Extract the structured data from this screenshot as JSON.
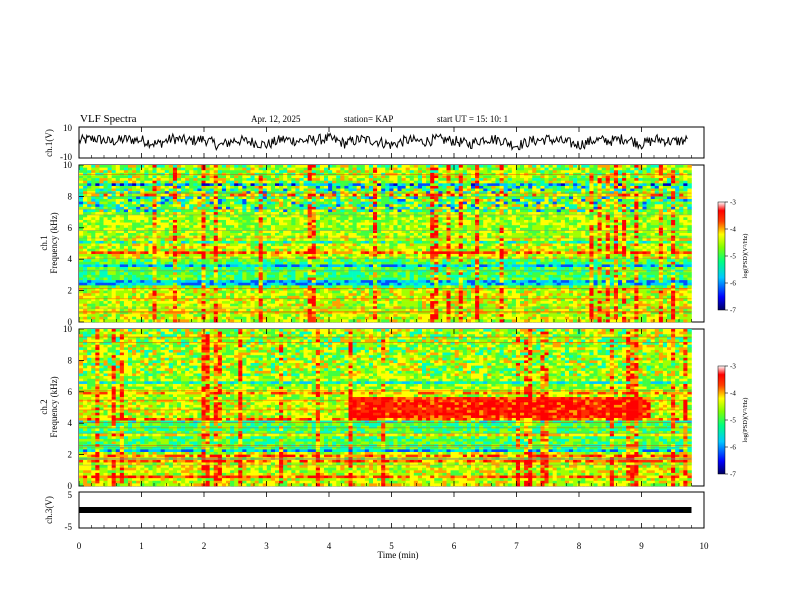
{
  "header": {
    "title": "VLF Spectra",
    "date": "Apr. 12, 2025",
    "station": "station= KAP",
    "start": "start UT =  15: 10: 1"
  },
  "panels": {
    "waveform_top": {
      "ylabel": "ch.1(V)",
      "ymin_label": "-10",
      "ymax_label": "10"
    },
    "spectrogram_1": {
      "ylabel_line1": "ch.1",
      "ylabel_line2": "Frequency (kHz)"
    },
    "spectrogram_2": {
      "ylabel_line1": "ch.2",
      "ylabel_line2": "Frequency (kHz)"
    },
    "waveform_bottom": {
      "ylabel": "ch.3(V)",
      "ymin_label": "-5",
      "ymax_label": "5"
    },
    "xlabel": "Time (min)"
  },
  "colorbar": {
    "label": "log(PSD)(V²/Hz)",
    "ticks": [
      "-3",
      "-4",
      "-5",
      "-6",
      "-7"
    ],
    "colors": [
      "#000080",
      "#0000ff",
      "#00ffff",
      "#00ff00",
      "#ffff00",
      "#ff0000",
      "#ffffff"
    ]
  },
  "chart_data": [
    {
      "type": "line",
      "title": "VLF Spectra",
      "ylabel": "ch.1(V)",
      "xlabel": "Time (min)",
      "xlim": [
        0,
        10
      ],
      "ylim": [
        -10,
        10
      ],
      "x_ticks": [
        "0",
        "1",
        "2",
        "3",
        "4",
        "5",
        "6",
        "7",
        "8",
        "9",
        "10"
      ],
      "y_ticks": [
        "-10",
        "10"
      ],
      "series": [
        {
          "x": [
            0,
            0.25,
            0.5,
            0.75,
            1,
            1.25,
            1.5,
            1.75,
            2,
            2.25,
            2.5,
            2.75,
            3,
            3.25,
            3.5,
            3.75,
            4,
            4.25,
            4.5,
            4.75,
            5,
            5.25,
            5.5,
            5.75,
            6,
            6.25,
            6.5,
            6.75,
            7,
            7.25,
            7.5,
            7.75,
            8,
            8.25,
            8.5,
            8.75,
            9,
            9.25,
            9.5,
            9.75
          ],
          "values": [
            2,
            5,
            1,
            4,
            3,
            -2,
            5,
            2,
            4,
            -4,
            3,
            1,
            -3,
            4,
            2,
            3,
            5,
            -1,
            4,
            2,
            -3,
            3,
            1,
            4,
            2,
            -2,
            5,
            3,
            -4,
            2,
            4,
            1,
            -3,
            3,
            2,
            5,
            -2,
            4,
            1,
            3
          ]
        }
      ]
    },
    {
      "type": "heatmap",
      "ylabel": "ch.1 Frequency (kHz)",
      "xlabel": "Time (min)",
      "xlim": [
        0,
        10
      ],
      "ylim": [
        0,
        10
      ],
      "x_ticks": [
        "0",
        "1",
        "2",
        "3",
        "4",
        "5",
        "6",
        "7",
        "8",
        "9",
        "10"
      ],
      "y_ticks": [
        "0",
        "2",
        "4",
        "6",
        "8",
        "10"
      ],
      "colorbar_label": "log(PSD)(V²/Hz)",
      "colorbar_range": [
        -7,
        -3
      ],
      "data_extent_min": 9.8
    },
    {
      "type": "heatmap",
      "ylabel": "ch.2 Frequency (kHz)",
      "xlabel": "Time (min)",
      "xlim": [
        0,
        10
      ],
      "ylim": [
        0,
        10
      ],
      "x_ticks": [
        "0",
        "1",
        "2",
        "3",
        "4",
        "5",
        "6",
        "7",
        "8",
        "9",
        "10"
      ],
      "y_ticks": [
        "0",
        "2",
        "4",
        "6",
        "8",
        "10"
      ],
      "colorbar_label": "log(PSD)(V²/Hz)",
      "colorbar_range": [
        -7,
        -3
      ],
      "data_extent_min": 9.8
    },
    {
      "type": "line",
      "ylabel": "ch.3(V)",
      "xlabel": "Time (min)",
      "xlim": [
        0,
        10
      ],
      "ylim": [
        -5,
        5
      ],
      "x_ticks": [
        "0",
        "1",
        "2",
        "3",
        "4",
        "5",
        "6",
        "7",
        "8",
        "9",
        "10"
      ],
      "y_ticks": [
        "-5",
        "0",
        "5"
      ],
      "series": [
        {
          "x": [
            0,
            9.8
          ],
          "values": [
            0,
            0
          ]
        }
      ]
    }
  ]
}
